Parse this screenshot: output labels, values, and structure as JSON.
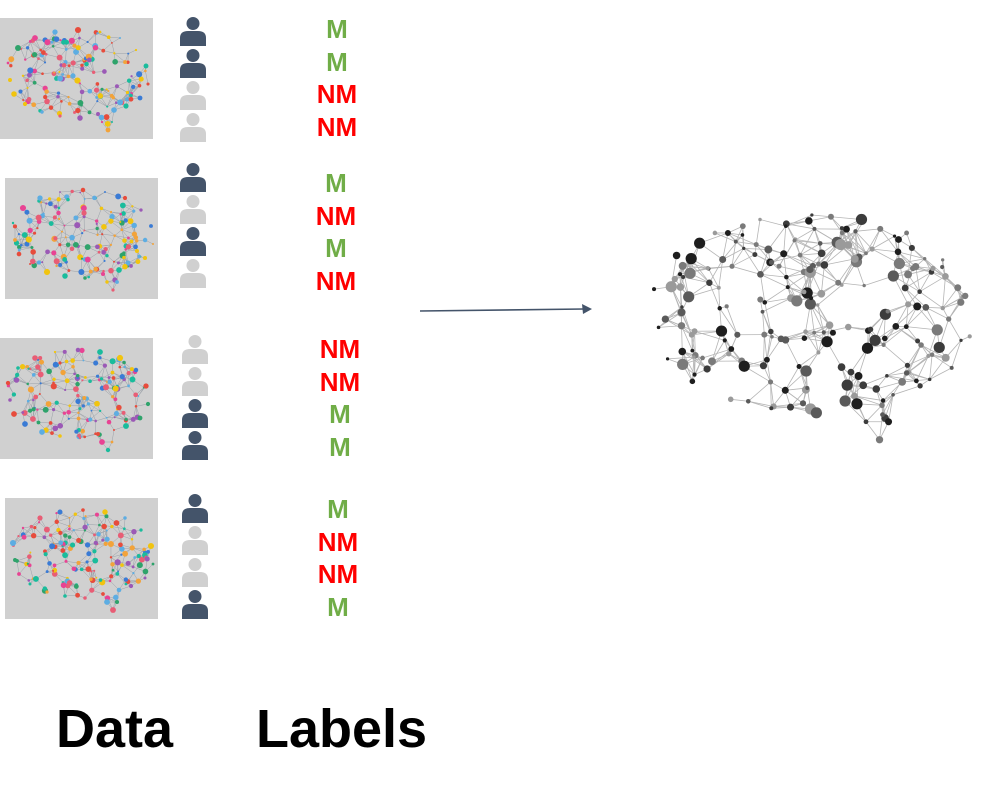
{
  "rows": [
    {
      "persons": [
        "dark",
        "dark",
        "light",
        "light"
      ],
      "labels": [
        "M",
        "M",
        "NM",
        "NM"
      ]
    },
    {
      "persons": [
        "dark",
        "light",
        "dark",
        "light"
      ],
      "labels": [
        "M",
        "NM",
        "M",
        "NM"
      ]
    },
    {
      "persons": [
        "light",
        "light",
        "dark",
        "dark"
      ],
      "labels": [
        "NM",
        "NM",
        "M",
        "M"
      ]
    },
    {
      "persons": [
        "dark",
        "light",
        "light",
        "dark"
      ],
      "labels": [
        "M",
        "NM",
        "NM",
        "M"
      ]
    }
  ],
  "captions": {
    "data": "Data",
    "labels": "Labels"
  },
  "colors": {
    "M": "#70ad47",
    "NM": "#ff0000",
    "person_dark": "#44546a",
    "person_light": "#d0d0d0",
    "tile_bg": "#d0d0d0",
    "arrow": "#44546a"
  },
  "icons": {
    "person": "person-icon",
    "brain": "brain-network-icon",
    "arrow": "arrow-right-icon"
  }
}
